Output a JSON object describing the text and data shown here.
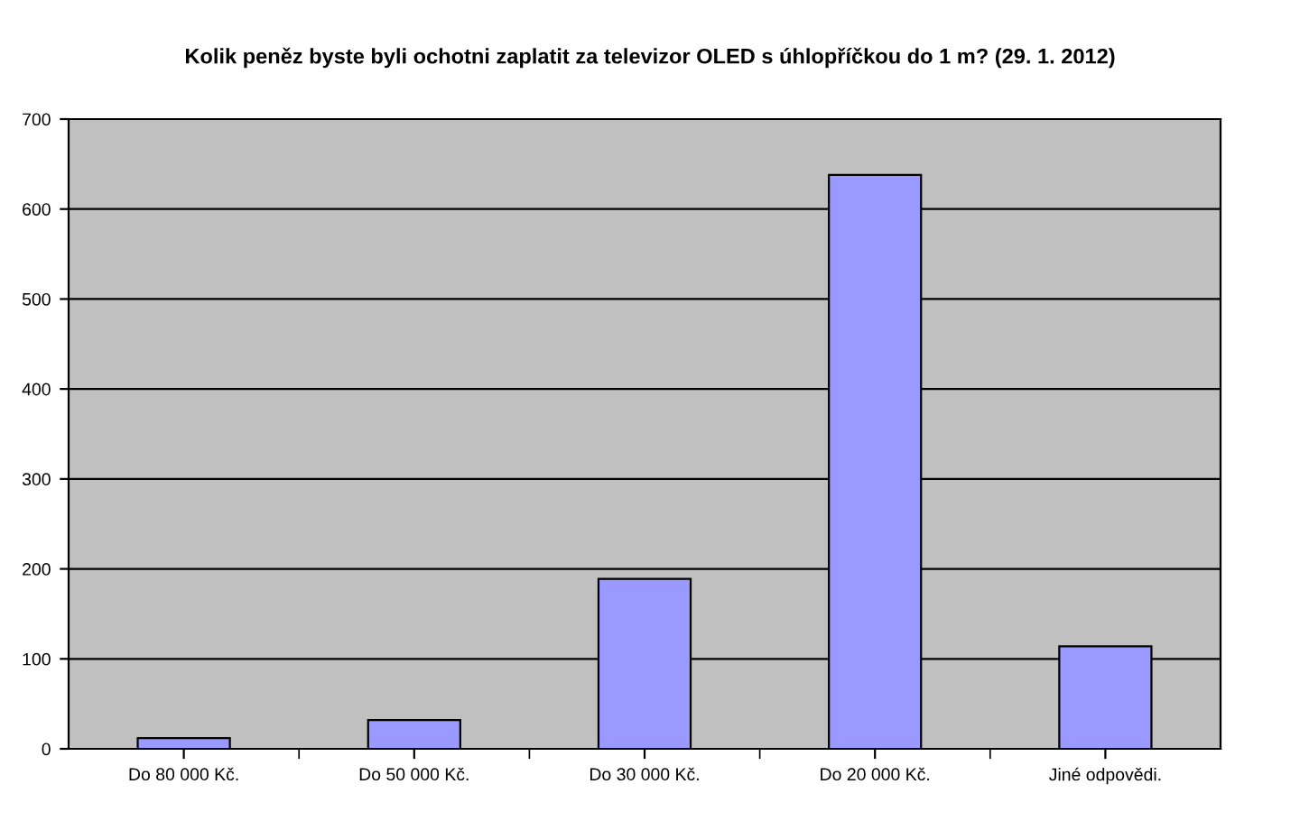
{
  "chart_data": {
    "type": "bar",
    "title": "Kolik peněz byste byli ochotni zaplatit za televizor OLED s úhlopříčkou do 1 m? (29. 1. 2012)",
    "categories": [
      "Do 80 000 Kč.",
      "Do 50 000 Kč.",
      "Do 30 000 Kč.",
      "Do 20 000 Kč.",
      "Jiné odpovědi."
    ],
    "values": [
      12,
      32,
      189,
      638,
      114
    ],
    "color": "#9999ff",
    "ylim": [
      0,
      700
    ],
    "yticks": [
      0,
      100,
      200,
      300,
      400,
      500,
      600,
      700
    ],
    "grid": "y",
    "legend": false
  }
}
